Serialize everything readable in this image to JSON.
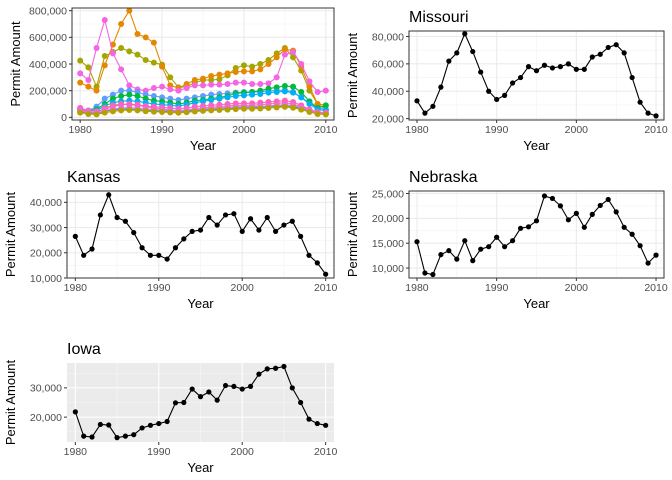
{
  "chart_data": [
    {
      "type": "line",
      "title": "",
      "xlabel": "Year",
      "ylabel": "Permit Amount",
      "theme": "bw",
      "xlim": [
        1979,
        2011
      ],
      "ylim": [
        -20000,
        820000
      ],
      "xticks": [
        1980,
        1990,
        2000,
        2010
      ],
      "xtick_labels": [
        "1980",
        "1990",
        "2000",
        "2010"
      ],
      "yticks": [
        0,
        200000,
        400000,
        600000,
        800000
      ],
      "ytick_labels": [
        "0",
        "200,000",
        "400,000",
        "600,000",
        "800,000"
      ],
      "x": [
        1980,
        1981,
        1982,
        1983,
        1984,
        1985,
        1986,
        1987,
        1988,
        1989,
        1990,
        1991,
        1992,
        1993,
        1994,
        1995,
        1996,
        1997,
        1998,
        1999,
        2000,
        2001,
        2002,
        2003,
        2004,
        2005,
        2006,
        2007,
        2008,
        2009,
        2010
      ],
      "series": [
        {
          "color": "#A3A500",
          "values": [
            425000,
            375000,
            230000,
            460000,
            490000,
            520000,
            495000,
            470000,
            430000,
            410000,
            395000,
            300000,
            225000,
            230000,
            260000,
            280000,
            280000,
            285000,
            315000,
            370000,
            390000,
            380000,
            400000,
            430000,
            480000,
            520000,
            450000,
            350000,
            200000,
            100000,
            90000
          ]
        },
        {
          "color": "#E58700",
          "values": [
            260000,
            230000,
            200000,
            390000,
            545000,
            700000,
            800000,
            625000,
            600000,
            560000,
            380000,
            240000,
            220000,
            250000,
            280000,
            290000,
            310000,
            320000,
            330000,
            340000,
            345000,
            345000,
            360000,
            400000,
            450000,
            510000,
            500000,
            380000,
            230000,
            100000,
            60000
          ]
        },
        {
          "color": "#F564E3",
          "values": [
            330000,
            280000,
            520000,
            730000,
            480000,
            360000,
            240000,
            210000,
            200000,
            220000,
            230000,
            210000,
            200000,
            220000,
            240000,
            240000,
            245000,
            245000,
            250000,
            260000,
            260000,
            250000,
            250000,
            255000,
            300000,
            470000,
            490000,
            400000,
            270000,
            190000,
            200000
          ]
        },
        {
          "color": "#619CFF",
          "values": [
            70000,
            50000,
            80000,
            140000,
            170000,
            200000,
            200000,
            190000,
            170000,
            160000,
            150000,
            140000,
            130000,
            140000,
            150000,
            160000,
            170000,
            175000,
            180000,
            185000,
            190000,
            190000,
            190000,
            200000,
            200000,
            205000,
            190000,
            150000,
            110000,
            70000,
            60000
          ]
        },
        {
          "color": "#00BA38",
          "values": [
            60000,
            50000,
            60000,
            100000,
            140000,
            160000,
            170000,
            160000,
            140000,
            125000,
            120000,
            110000,
            100000,
            110000,
            125000,
            130000,
            140000,
            150000,
            160000,
            180000,
            185000,
            190000,
            200000,
            215000,
            225000,
            235000,
            230000,
            190000,
            120000,
            70000,
            90000
          ]
        },
        {
          "color": "#00B0F6",
          "values": [
            55000,
            45000,
            50000,
            85000,
            110000,
            120000,
            125000,
            120000,
            110000,
            100000,
            95000,
            90000,
            85000,
            95000,
            110000,
            120000,
            130000,
            140000,
            150000,
            160000,
            165000,
            170000,
            175000,
            185000,
            190000,
            195000,
            185000,
            150000,
            100000,
            60000,
            50000
          ]
        },
        {
          "color": "#F8766D",
          "values": [
            60000,
            40000,
            35000,
            70000,
            90000,
            100000,
            95000,
            90000,
            80000,
            70000,
            65000,
            55000,
            50000,
            55000,
            65000,
            70000,
            75000,
            80000,
            85000,
            90000,
            90000,
            90000,
            95000,
            100000,
            105000,
            110000,
            100000,
            80000,
            55000,
            30000,
            25000
          ]
        },
        {
          "color": "#FF62BC",
          "values": [
            70000,
            50000,
            45000,
            60000,
            80000,
            95000,
            100000,
            95000,
            85000,
            80000,
            75000,
            70000,
            65000,
            70000,
            80000,
            85000,
            90000,
            95000,
            100000,
            105000,
            105000,
            105000,
            110000,
            115000,
            120000,
            125000,
            115000,
            90000,
            60000,
            40000,
            35000
          ]
        },
        {
          "color": "#00BF7D",
          "values": [
            40000,
            30000,
            28000,
            45000,
            55000,
            60000,
            62000,
            58000,
            52000,
            48000,
            46000,
            42000,
            40000,
            44000,
            50000,
            55000,
            58000,
            62000,
            66000,
            70000,
            72000,
            72000,
            74000,
            78000,
            82000,
            86000,
            80000,
            65000,
            45000,
            28000,
            25000
          ]
        },
        {
          "color": "#E76BF3",
          "values": [
            50000,
            38000,
            32000,
            50000,
            62000,
            70000,
            72000,
            68000,
            62000,
            58000,
            55000,
            50000,
            48000,
            52000,
            58000,
            62000,
            66000,
            70000,
            74000,
            78000,
            80000,
            80000,
            82000,
            86000,
            90000,
            95000,
            88000,
            72000,
            50000,
            32000,
            28000
          ]
        },
        {
          "color": "#B79F00",
          "values": [
            35000,
            25000,
            22000,
            35000,
            45000,
            52000,
            55000,
            52000,
            46000,
            42000,
            40000,
            36000,
            34000,
            38000,
            44000,
            48000,
            52000,
            55000,
            58000,
            62000,
            64000,
            64000,
            66000,
            70000,
            74000,
            78000,
            72000,
            58000,
            40000,
            25000,
            22000
          ]
        }
      ]
    },
    {
      "type": "line",
      "title": "Missouri",
      "xlabel": "Year",
      "ylabel": "Permit Amount",
      "theme": "bw",
      "xlim": [
        1979,
        2011
      ],
      "ylim": [
        19000,
        84000
      ],
      "xticks": [
        1980,
        1990,
        2000,
        2010
      ],
      "xtick_labels": [
        "1980",
        "1990",
        "2000",
        "2010"
      ],
      "yticks": [
        20000,
        40000,
        60000,
        80000
      ],
      "ytick_labels": [
        "20,000",
        "40,000",
        "60,000",
        "80,000"
      ],
      "x": [
        1980,
        1981,
        1982,
        1983,
        1984,
        1985,
        1986,
        1987,
        1988,
        1989,
        1990,
        1991,
        1992,
        1993,
        1994,
        1995,
        1996,
        1997,
        1998,
        1999,
        2000,
        2001,
        2002,
        2003,
        2004,
        2005,
        2006,
        2007,
        2008,
        2009,
        2010
      ],
      "series": [
        {
          "color": "#000000",
          "values": [
            33000,
            24000,
            29000,
            43000,
            62000,
            68000,
            82000,
            69000,
            54000,
            40000,
            34000,
            37000,
            46000,
            50000,
            58000,
            55000,
            59000,
            57000,
            58000,
            60000,
            56000,
            56000,
            65000,
            67000,
            72000,
            74000,
            68000,
            50000,
            32000,
            24000,
            22000
          ]
        }
      ]
    },
    {
      "type": "line",
      "title": "Kansas",
      "xlabel": "Year",
      "ylabel": "Permit Amount",
      "theme": "bw",
      "xlim": [
        1979,
        2011
      ],
      "ylim": [
        10000,
        44500
      ],
      "xticks": [
        1980,
        1990,
        2000,
        2010
      ],
      "xtick_labels": [
        "1980",
        "1990",
        "2000",
        "2010"
      ],
      "yticks": [
        10000,
        20000,
        30000,
        40000
      ],
      "ytick_labels": [
        "10,000",
        "20,000",
        "30,000",
        "40,000"
      ],
      "x": [
        1980,
        1981,
        1982,
        1983,
        1984,
        1985,
        1986,
        1987,
        1988,
        1989,
        1990,
        1991,
        1992,
        1993,
        1994,
        1995,
        1996,
        1997,
        1998,
        1999,
        2000,
        2001,
        2002,
        2003,
        2004,
        2005,
        2006,
        2007,
        2008,
        2009,
        2010
      ],
      "series": [
        {
          "color": "#000000",
          "values": [
            26500,
            19000,
            21500,
            35000,
            43000,
            34000,
            32500,
            28000,
            22000,
            19000,
            19000,
            17500,
            22000,
            25500,
            28500,
            29000,
            34000,
            31000,
            35000,
            35500,
            28500,
            33500,
            29000,
            34000,
            28500,
            31000,
            32500,
            26500,
            19000,
            16000,
            11500
          ]
        }
      ]
    },
    {
      "type": "line",
      "title": "Nebraska",
      "xlabel": "Year",
      "ylabel": "Permit Amount",
      "theme": "bw",
      "xlim": [
        1979,
        2011
      ],
      "ylim": [
        8000,
        25500
      ],
      "xticks": [
        1980,
        1990,
        2000,
        2010
      ],
      "xtick_labels": [
        "1980",
        "1990",
        "2000",
        "2010"
      ],
      "yticks": [
        10000,
        15000,
        20000,
        25000
      ],
      "ytick_labels": [
        "10,000",
        "15,000",
        "20,000",
        "25,000"
      ],
      "x": [
        1980,
        1981,
        1982,
        1983,
        1984,
        1985,
        1986,
        1987,
        1988,
        1989,
        1990,
        1991,
        1992,
        1993,
        1994,
        1995,
        1996,
        1997,
        1998,
        1999,
        2000,
        2001,
        2002,
        2003,
        2004,
        2005,
        2006,
        2007,
        2008,
        2009,
        2010
      ],
      "series": [
        {
          "color": "#000000",
          "values": [
            15300,
            9000,
            8700,
            12700,
            13500,
            11800,
            15500,
            11500,
            13800,
            14300,
            16200,
            14300,
            15500,
            18000,
            18300,
            19500,
            24500,
            24000,
            22500,
            19700,
            21000,
            18200,
            20800,
            22600,
            23800,
            21300,
            18200,
            16800,
            14500,
            11000,
            12600
          ]
        }
      ]
    },
    {
      "type": "line",
      "title": "Iowa",
      "xlabel": "Year",
      "ylabel": "Permit Amount",
      "theme": "gray",
      "xlim": [
        1979,
        2011
      ],
      "ylim": [
        11500,
        38500
      ],
      "xticks": [
        1980,
        1990,
        2000,
        2010
      ],
      "xtick_labels": [
        "1980",
        "1990",
        "2000",
        "2010"
      ],
      "yticks": [
        20000,
        30000
      ],
      "ytick_labels": [
        "20,000",
        "30,000"
      ],
      "x": [
        1980,
        1981,
        1982,
        1983,
        1984,
        1985,
        1986,
        1987,
        1988,
        1989,
        1990,
        1991,
        1992,
        1993,
        1994,
        1995,
        1996,
        1997,
        1998,
        1999,
        2000,
        2001,
        2002,
        2003,
        2004,
        2005,
        2006,
        2007,
        2008,
        2009,
        2010
      ],
      "series": [
        {
          "color": "#000000",
          "values": [
            21800,
            13500,
            13200,
            17500,
            17300,
            13000,
            13500,
            14000,
            16300,
            17200,
            17800,
            18500,
            24900,
            25000,
            29600,
            27000,
            28600,
            25800,
            30800,
            30500,
            29600,
            30500,
            34700,
            36500,
            36700,
            37300,
            30000,
            25000,
            19300,
            17800,
            17200
          ]
        }
      ]
    }
  ]
}
